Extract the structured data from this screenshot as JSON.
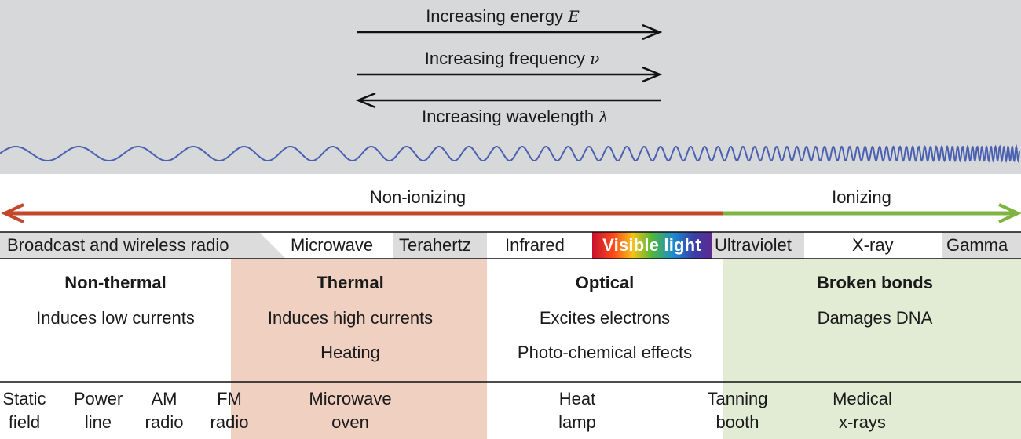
{
  "header": {
    "energy_label": "Increasing energy",
    "energy_symbol": "E",
    "frequency_label": "Increasing frequency",
    "frequency_symbol": "ν",
    "wavelength_label": "Increasing wavelength",
    "wavelength_symbol": "λ"
  },
  "ionization": {
    "non_ionizing_label": "Non-ionizing",
    "ionizing_label": "Ionizing"
  },
  "bands": [
    {
      "label": "Broadcast and wireless radio"
    },
    {
      "label": "Microwave"
    },
    {
      "label": "Terahertz"
    },
    {
      "label": "Infrared"
    },
    {
      "label": "Visible light"
    },
    {
      "label": "Ultraviolet"
    },
    {
      "label": "X-ray"
    },
    {
      "label": "Gamma"
    }
  ],
  "effects": [
    {
      "title": "Non-thermal",
      "lines": [
        "Induces low currents"
      ]
    },
    {
      "title": "Thermal",
      "lines": [
        "Induces high currents",
        "Heating"
      ]
    },
    {
      "title": "Optical",
      "lines": [
        "Excites electrons",
        "Photo-chemical effects"
      ]
    },
    {
      "title": "Broken bonds",
      "lines": [
        "Damages DNA"
      ]
    }
  ],
  "sources": [
    {
      "line1": "Static",
      "line2": "field"
    },
    {
      "line1": "Power",
      "line2": "line"
    },
    {
      "line1": "AM",
      "line2": "radio"
    },
    {
      "line1": "FM",
      "line2": "radio"
    },
    {
      "line1": "Microwave",
      "line2": "oven"
    },
    {
      "line1": "Heat",
      "line2": "lamp"
    },
    {
      "line1": "Tanning",
      "line2": "booth"
    },
    {
      "line1": "Medical",
      "line2": "x-rays"
    }
  ],
  "colors": {
    "header_bg": "#d7d8da",
    "wave": "#4a60b0",
    "non_ionizing_arrow": "#c2472b",
    "ionizing_arrow": "#7eb442",
    "thermal_bg": "#f0d0c0",
    "broken_bonds_bg": "#e2ecd4",
    "band_gray": "#dcdcdc"
  }
}
